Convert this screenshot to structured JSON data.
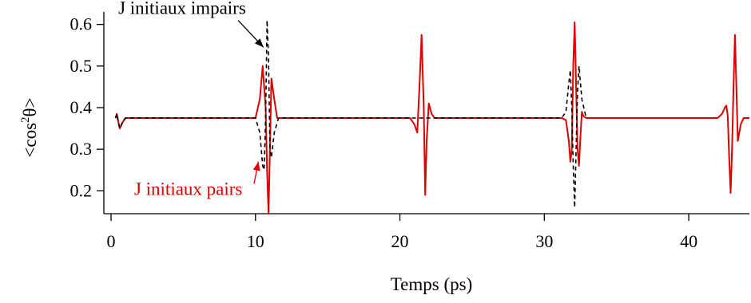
{
  "chart_data": {
    "type": "line",
    "title": "",
    "xlabel": "Temps (ps)",
    "ylabel_parts": {
      "pre": "<cos",
      "sup": "2",
      "post": "θ>"
    },
    "xlim": [
      -0.5,
      44.2
    ],
    "ylim": [
      0.145,
      0.63
    ],
    "x_ticks": [
      0,
      10,
      20,
      30,
      40
    ],
    "x_tick_labels": [
      "0",
      "10",
      "20",
      "30",
      "40"
    ],
    "y_ticks": [
      0.2,
      0.3,
      0.4,
      0.5,
      0.6
    ],
    "y_tick_labels": [
      "0.2",
      "0.3",
      "0.4",
      "0.5",
      "0.6"
    ],
    "grid": false,
    "legend": "none",
    "baseline": 0.375,
    "series": [
      {
        "color": "#dd0000",
        "style": "solid",
        "x": [
          0.3,
          0.4,
          0.5,
          0.6,
          0.8,
          1.0,
          10.0,
          10.3,
          10.5,
          10.7,
          10.8,
          10.9,
          11.0,
          11.1,
          11.3,
          11.5,
          20.7,
          21.0,
          21.2,
          21.35,
          21.5,
          21.65,
          21.75,
          21.85,
          22.0,
          22.2,
          22.4,
          31.2,
          31.5,
          31.7,
          31.8,
          31.9,
          32.0,
          32.1,
          32.2,
          32.3,
          32.4,
          32.5,
          32.6,
          32.7,
          32.9,
          33.1,
          42.0,
          42.3,
          42.5,
          42.6,
          42.7,
          42.8,
          42.9,
          43.0,
          43.1,
          43.2,
          43.3,
          43.4,
          43.6,
          43.8,
          44.2
        ],
        "y": [
          0.375,
          0.385,
          0.365,
          0.35,
          0.365,
          0.375,
          0.375,
          0.42,
          0.5,
          0.4,
          0.25,
          0.145,
          0.3,
          0.47,
          0.42,
          0.375,
          0.375,
          0.36,
          0.34,
          0.45,
          0.575,
          0.4,
          0.19,
          0.32,
          0.41,
          0.385,
          0.375,
          0.375,
          0.37,
          0.32,
          0.27,
          0.3,
          0.5,
          0.605,
          0.45,
          0.3,
          0.26,
          0.33,
          0.39,
          0.38,
          0.375,
          0.375,
          0.375,
          0.385,
          0.4,
          0.405,
          0.38,
          0.28,
          0.195,
          0.3,
          0.45,
          0.575,
          0.45,
          0.32,
          0.36,
          0.375,
          0.375
        ]
      },
      {
        "color": "#000000",
        "style": "dashed",
        "x": [
          0.3,
          0.4,
          0.5,
          0.6,
          0.8,
          1.0,
          10.0,
          10.3,
          10.5,
          10.6,
          10.7,
          10.8,
          10.9,
          11.0,
          11.1,
          11.3,
          11.6,
          31.2,
          31.5,
          31.7,
          31.8,
          31.9,
          32.0,
          32.1,
          32.2,
          32.3,
          32.4,
          32.6,
          32.9
        ],
        "y": [
          0.375,
          0.385,
          0.365,
          0.35,
          0.365,
          0.375,
          0.375,
          0.34,
          0.26,
          0.25,
          0.38,
          0.61,
          0.52,
          0.3,
          0.28,
          0.34,
          0.375,
          0.375,
          0.39,
          0.46,
          0.49,
          0.4,
          0.26,
          0.16,
          0.3,
          0.44,
          0.5,
          0.42,
          0.375
        ]
      }
    ],
    "annotations": [
      {
        "text": "J initiaux impairs",
        "color": "#000000",
        "at": [
          0.5,
          0.625
        ],
        "arrow_to": [
          10.55,
          0.545
        ]
      },
      {
        "text": "J initiaux pairs",
        "color": "#dd0000",
        "at": [
          1.6,
          0.19
        ],
        "arrow_to": [
          10.2,
          0.27
        ]
      }
    ]
  }
}
